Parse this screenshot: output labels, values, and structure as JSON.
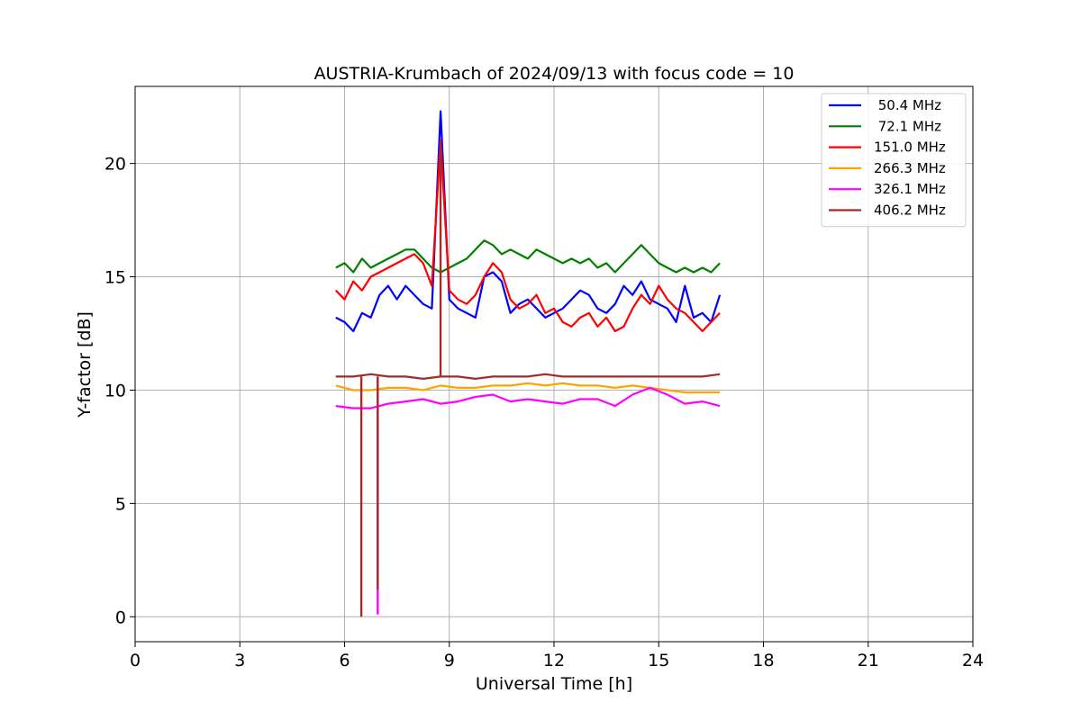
{
  "chart_data": {
    "type": "line",
    "title": "AUSTRIA-Krumbach of 2024/09/13 with focus code = 10",
    "xlabel": "Universal Time [h]",
    "ylabel": "Y-factor [dB]",
    "xlim": [
      0,
      24
    ],
    "ylim": [
      -1.1,
      23.4
    ],
    "xticks": [
      "0",
      "3",
      "6",
      "9",
      "12",
      "15",
      "18",
      "21",
      "24"
    ],
    "yticks": [
      "0",
      "5",
      "10",
      "15",
      "20"
    ],
    "grid": true,
    "legend_position": "top-right",
    "series": [
      {
        "name": " 50.4 MHz",
        "color": "#0000ff",
        "x": [
          5.75,
          6.0,
          6.25,
          6.5,
          6.75,
          7.0,
          7.25,
          7.5,
          7.75,
          8.0,
          8.25,
          8.5,
          8.75,
          9.0,
          9.25,
          9.5,
          9.75,
          10.0,
          10.25,
          10.5,
          10.75,
          11.0,
          11.25,
          11.5,
          11.75,
          12.0,
          12.25,
          12.5,
          12.75,
          13.0,
          13.25,
          13.5,
          13.75,
          14.0,
          14.25,
          14.5,
          14.75,
          15.0,
          15.25,
          15.5,
          15.75,
          16.0,
          16.25,
          16.5,
          16.75
        ],
        "y": [
          13.2,
          13.0,
          12.6,
          13.4,
          13.2,
          14.2,
          14.6,
          14.0,
          14.6,
          14.2,
          13.8,
          13.6,
          22.3,
          14.0,
          13.6,
          13.4,
          13.2,
          15.0,
          15.2,
          14.8,
          13.4,
          13.8,
          14.0,
          13.6,
          13.2,
          13.4,
          13.6,
          14.0,
          14.4,
          14.2,
          13.6,
          13.4,
          13.8,
          14.6,
          14.2,
          14.8,
          14.0,
          13.8,
          13.6,
          13.0,
          14.6,
          13.2,
          13.4,
          13.0,
          14.2
        ]
      },
      {
        "name": " 72.1 MHz",
        "color": "#008000",
        "x": [
          5.75,
          6.0,
          6.25,
          6.5,
          6.75,
          7.0,
          7.25,
          7.5,
          7.75,
          8.0,
          8.25,
          8.5,
          8.75,
          9.0,
          9.25,
          9.5,
          9.75,
          10.0,
          10.25,
          10.5,
          10.75,
          11.0,
          11.25,
          11.5,
          11.75,
          12.0,
          12.25,
          12.5,
          12.75,
          13.0,
          13.25,
          13.5,
          13.75,
          14.0,
          14.25,
          14.5,
          14.75,
          15.0,
          15.25,
          15.5,
          15.75,
          16.0,
          16.25,
          16.5,
          16.75
        ],
        "y": [
          15.4,
          15.6,
          15.2,
          15.8,
          15.4,
          15.6,
          15.8,
          16.0,
          16.2,
          16.2,
          15.8,
          15.4,
          15.2,
          15.4,
          15.6,
          15.8,
          16.2,
          16.6,
          16.4,
          16.0,
          16.2,
          16.0,
          15.8,
          16.2,
          16.0,
          15.8,
          15.6,
          15.8,
          15.6,
          15.8,
          15.4,
          15.6,
          15.2,
          15.6,
          16.0,
          16.4,
          16.0,
          15.6,
          15.4,
          15.2,
          15.4,
          15.2,
          15.4,
          15.2,
          15.6
        ]
      },
      {
        "name": "151.0 MHz",
        "color": "#ff0000",
        "x": [
          5.75,
          6.0,
          6.25,
          6.5,
          6.75,
          7.0,
          7.25,
          7.5,
          7.75,
          8.0,
          8.25,
          8.5,
          8.75,
          9.0,
          9.25,
          9.5,
          9.75,
          10.0,
          10.25,
          10.5,
          10.75,
          11.0,
          11.25,
          11.5,
          11.75,
          12.0,
          12.25,
          12.5,
          12.75,
          13.0,
          13.25,
          13.5,
          13.75,
          14.0,
          14.25,
          14.5,
          14.75,
          15.0,
          15.25,
          15.5,
          15.75,
          16.0,
          16.25,
          16.5,
          16.75
        ],
        "y": [
          14.4,
          14.0,
          14.8,
          14.4,
          15.0,
          15.2,
          15.4,
          15.6,
          15.8,
          16.0,
          15.6,
          14.6,
          21.0,
          14.4,
          14.0,
          13.8,
          14.2,
          15.0,
          15.6,
          15.2,
          14.0,
          13.6,
          13.8,
          14.2,
          13.4,
          13.6,
          13.0,
          12.8,
          13.2,
          13.4,
          12.8,
          13.2,
          12.6,
          12.8,
          13.6,
          14.2,
          13.8,
          14.6,
          14.0,
          13.6,
          13.4,
          13.0,
          12.6,
          13.0,
          13.4
        ]
      },
      {
        "name": "266.3 MHz",
        "color": "#ffa500",
        "x": [
          5.75,
          6.25,
          6.75,
          7.25,
          7.75,
          8.25,
          8.75,
          9.25,
          9.75,
          10.25,
          10.75,
          11.25,
          11.75,
          12.25,
          12.75,
          13.25,
          13.75,
          14.25,
          14.75,
          15.25,
          15.75,
          16.25,
          16.75
        ],
        "y": [
          10.2,
          10.0,
          10.0,
          10.1,
          10.1,
          10.0,
          10.2,
          10.1,
          10.1,
          10.2,
          10.2,
          10.3,
          10.2,
          10.3,
          10.2,
          10.2,
          10.1,
          10.2,
          10.1,
          10.0,
          9.9,
          9.9,
          9.9
        ]
      },
      {
        "name": "326.1 MHz",
        "color": "#ff00ff",
        "x": [
          5.75,
          6.25,
          6.75,
          7.25,
          7.75,
          8.25,
          8.75,
          9.25,
          9.75,
          10.25,
          10.75,
          11.25,
          11.75,
          12.25,
          12.75,
          13.25,
          13.75,
          14.25,
          14.75,
          15.25,
          15.75,
          16.25,
          16.75
        ],
        "y": [
          9.3,
          9.2,
          9.2,
          9.4,
          9.5,
          9.6,
          9.4,
          9.5,
          9.7,
          9.8,
          9.5,
          9.6,
          9.5,
          9.4,
          9.6,
          9.6,
          9.3,
          9.8,
          10.1,
          9.8,
          9.4,
          9.5,
          9.3
        ]
      },
      {
        "name": "406.2 MHz",
        "color": "#a52a2a",
        "x": [
          5.75,
          6.25,
          6.75,
          7.25,
          7.75,
          8.25,
          8.75,
          9.25,
          9.75,
          10.25,
          10.75,
          11.25,
          11.75,
          12.25,
          12.75,
          13.25,
          13.75,
          14.25,
          14.75,
          15.25,
          15.75,
          16.25,
          16.75
        ],
        "y": [
          10.6,
          10.6,
          10.7,
          10.6,
          10.6,
          10.5,
          10.6,
          10.6,
          10.5,
          10.6,
          10.6,
          10.6,
          10.7,
          10.6,
          10.6,
          10.6,
          10.6,
          10.6,
          10.6,
          10.6,
          10.6,
          10.6,
          10.7
        ]
      }
    ],
    "spikes": [
      {
        "x": 6.48,
        "y_from": 10.6,
        "y_to": 0.0,
        "color": "#a52a2a"
      },
      {
        "x": 6.95,
        "y_from": 10.6,
        "y_to": 0.1,
        "color": "#ff00ff"
      },
      {
        "x": 6.95,
        "y_from": 10.6,
        "y_to": 1.2,
        "color": "#a52a2a"
      },
      {
        "x": 8.75,
        "y_from": 10.6,
        "y_to": 21.0,
        "color": "#a52a2a"
      }
    ]
  }
}
